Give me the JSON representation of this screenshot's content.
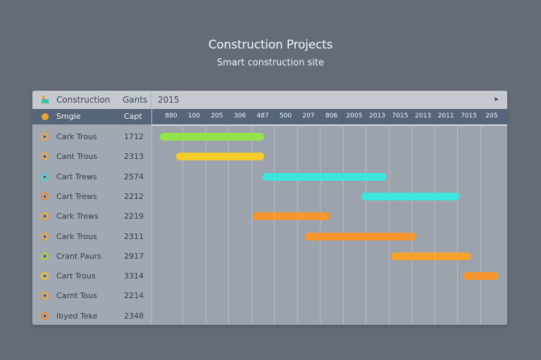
{
  "page": {
    "title": "Construction Projects",
    "subtitle": "Smart construction site"
  },
  "panel": {
    "header_title": "Construction",
    "header_col": "Gants",
    "header_year": "2015",
    "next_icon": "chevron-right-icon"
  },
  "table": {
    "head_label": "Smgle",
    "head_value": "Capt",
    "rows": [
      {
        "name": "Cark Trous",
        "value": "1712",
        "color": "#f0a23a"
      },
      {
        "name": "Cant Trous",
        "value": "2313",
        "color": "#f0a23a"
      },
      {
        "name": "Cart Trews",
        "value": "2574",
        "color": "#3fd7d3"
      },
      {
        "name": "Cart Trews",
        "value": "2212",
        "color": "#f08a2a"
      },
      {
        "name": "Cark Trews",
        "value": "2219",
        "color": "#f0a23a"
      },
      {
        "name": "Cark Trous",
        "value": "2311",
        "color": "#f0a23a"
      },
      {
        "name": "Crant Paurs",
        "value": "2917",
        "color": "#9ad43a"
      },
      {
        "name": "Cart Trous",
        "value": "3314",
        "color": "#f2c22c"
      },
      {
        "name": "Carnt Tous",
        "value": "2214",
        "color": "#f0a23a"
      },
      {
        "name": "Ibyed Teke",
        "value": "2348",
        "color": "#f08a2a"
      }
    ]
  },
  "timeline": {
    "ticks": [
      "880",
      "100",
      "205",
      "306",
      "487",
      "500",
      "207",
      "806",
      "2005",
      "2013",
      "7015",
      "2013",
      "2011",
      "7015",
      "205"
    ],
    "tasks": [
      {
        "row": 0,
        "start": 0.0,
        "end": 4.55,
        "color": "#93e24a"
      },
      {
        "row": 1,
        "start": 0.7,
        "end": 4.55,
        "color": "#f4cd2a"
      },
      {
        "row": 2,
        "start": 4.5,
        "end": 9.9,
        "color": "#3ce6dc"
      },
      {
        "row": 3,
        "start": 8.8,
        "end": 13.1,
        "color": "#3ce6dc"
      },
      {
        "row": 4,
        "start": 4.05,
        "end": 7.45,
        "color": "#f5962e"
      },
      {
        "row": 5,
        "start": 6.35,
        "end": 11.2,
        "color": "#f5962e"
      },
      {
        "row": 6,
        "start": 10.1,
        "end": 13.6,
        "color": "#f5a32c"
      },
      {
        "row": 7,
        "start": 13.25,
        "end": 14.8,
        "color": "#f5962e"
      }
    ]
  }
}
